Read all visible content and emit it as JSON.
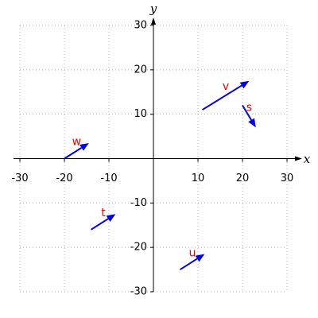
{
  "chart_data": {
    "type": "vector",
    "xlabel": "x",
    "ylabel": "y",
    "xlim": [
      -30,
      30
    ],
    "ylim": [
      -30,
      30
    ],
    "xticks": [
      -30,
      -20,
      -10,
      10,
      20,
      30
    ],
    "yticks": [
      -30,
      -20,
      -10,
      10,
      20,
      30
    ],
    "grid": true,
    "color": "#0000ee",
    "label_color": "#ee0000",
    "vectors": [
      {
        "name": "v",
        "x0": 11,
        "y0": 11,
        "x1": 21.5,
        "y1": 17.5
      },
      {
        "name": "s",
        "x0": 20,
        "y0": 12,
        "x1": 23,
        "y1": 7
      },
      {
        "name": "w",
        "x0": -20,
        "y0": 0,
        "x1": -14.5,
        "y1": 3.5
      },
      {
        "name": "t",
        "x0": -14,
        "y0": -16,
        "x1": -8.5,
        "y1": -12.5
      },
      {
        "name": "u",
        "x0": 6,
        "y0": -25,
        "x1": 11.5,
        "y1": -21.5
      }
    ]
  }
}
